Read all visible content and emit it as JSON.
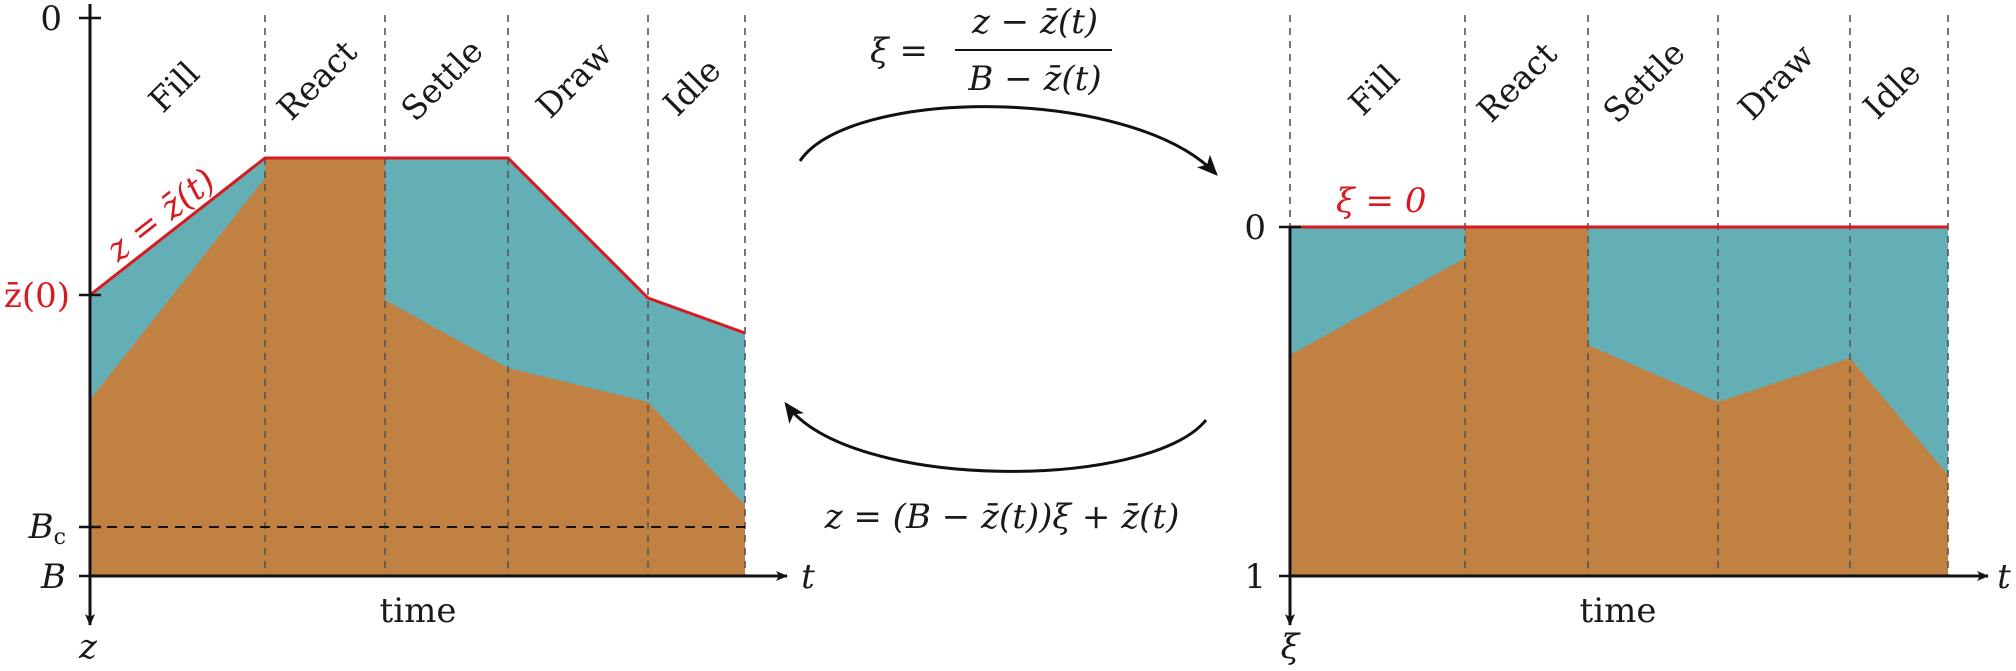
{
  "colors": {
    "water": "#64afb6",
    "sediment": "#c08142",
    "surface": "#d71920",
    "axis": "#111111",
    "grid": "#555555"
  },
  "left_panel": {
    "phases": [
      "Fill",
      "React",
      "Settle",
      "Draw",
      "Idle"
    ],
    "x_axis": {
      "label": "time",
      "symbol": "t"
    },
    "y_axis": {
      "symbol": "z",
      "tick_top": "0",
      "tick_z0": "z̄(0)",
      "tick_Bc_main": "B",
      "tick_Bc_sub": "c",
      "tick_B": "B"
    },
    "surface_label": "z = z̄(t)"
  },
  "right_panel": {
    "phases": [
      "Fill",
      "React",
      "Settle",
      "Draw",
      "Idle"
    ],
    "x_axis": {
      "label": "time",
      "symbol": "t"
    },
    "y_axis": {
      "symbol": "ξ",
      "tick_0": "0",
      "tick_1": "1"
    },
    "surface_label": "ξ = 0"
  },
  "transforms": {
    "forward": {
      "lhs": "ξ =",
      "numerator": "z − z̄(t)",
      "denominator": "B − z̄(t)"
    },
    "inverse": "z = (B − z̄(t))ξ + z̄(t)"
  }
}
